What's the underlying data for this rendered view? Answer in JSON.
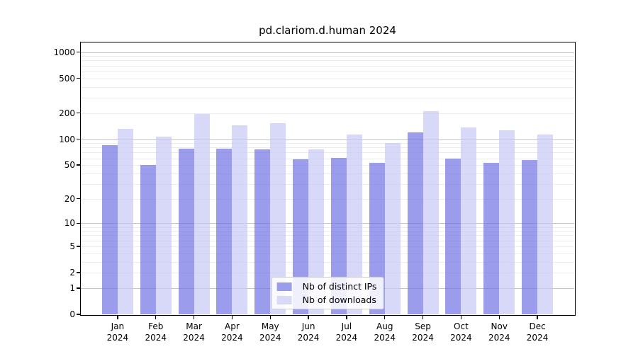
{
  "chart_data": {
    "type": "bar",
    "title": "pd.clariom.d.human 2024",
    "categories": [
      "Jan",
      "Feb",
      "Mar",
      "Apr",
      "May",
      "Jun",
      "Jul",
      "Aug",
      "Sep",
      "Oct",
      "Nov",
      "Dec"
    ],
    "x_year_label": "2024",
    "series": [
      {
        "key": "distinct-ips",
        "name": "Nb of distinct IPs",
        "color": "#9c9cec",
        "fill": "rgba(114,114,230,0.7)",
        "values": [
          85,
          50,
          78,
          78,
          76,
          58,
          61,
          53,
          120,
          60,
          53,
          57
        ]
      },
      {
        "key": "downloads",
        "name": "Nb of downloads",
        "color": "#d9d9f8",
        "fill": "rgba(200,200,245,0.7)",
        "values": [
          132,
          107,
          194,
          145,
          152,
          76,
          112,
          90,
          210,
          136,
          126,
          112
        ]
      }
    ],
    "y_ticks": [
      1000,
      500,
      100,
      50,
      20,
      10,
      5,
      2,
      1,
      0,
      200
    ],
    "y_tick_order_displayed": [
      1000,
      500,
      200,
      100,
      50,
      20,
      10,
      5,
      2,
      1,
      0
    ],
    "y_scale": "log1p",
    "ylim": [
      0,
      1280
    ],
    "grid": true,
    "legend_position": "lower center"
  },
  "colors": {
    "grid_major": "#c4c4c4",
    "grid_minor": "#ececec",
    "frame": "#000000",
    "text": "#000000",
    "background": "#ffffff"
  }
}
